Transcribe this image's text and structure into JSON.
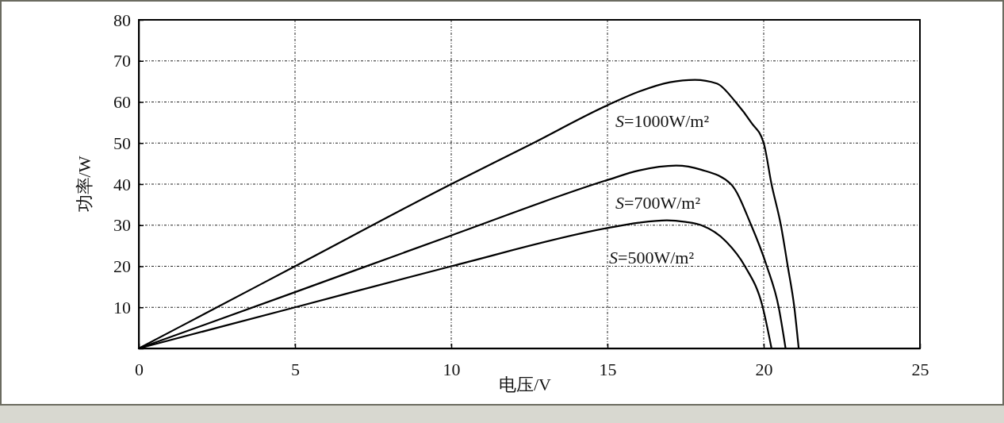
{
  "chart_data": {
    "type": "line",
    "xlabel": "电压/V",
    "ylabel": "功率/W",
    "xlim": [
      0,
      25
    ],
    "xticks": [
      0,
      5,
      10,
      15,
      20,
      25
    ],
    "ylim": [
      0,
      80
    ],
    "yticks": [
      {
        "value": 0,
        "label": null
      },
      10,
      20,
      30,
      40,
      50,
      60,
      70,
      80
    ],
    "grid": true,
    "line_style": "solid",
    "marker": "none",
    "series": [
      {
        "color": "#000000",
        "x": [
          0,
          2.5,
          5,
          10,
          12.5,
          15,
          16,
          17,
          17.8,
          18.5,
          19.1,
          19.6,
          20,
          20.25,
          20.55,
          20.77,
          20.98,
          21.12
        ],
        "values": [
          0,
          10,
          20,
          40,
          49.5,
          59.2,
          62.5,
          64.8,
          65.4,
          64.5,
          60,
          55,
          50,
          40,
          30,
          20,
          10,
          0
        ]
      },
      {
        "color": "#000000",
        "x": [
          0,
          5,
          10,
          15,
          16,
          17.2,
          18,
          18.95,
          19.6,
          20.1,
          20.48,
          20.7
        ],
        "values": [
          0,
          13.7,
          27.5,
          41,
          43.3,
          44.5,
          43.5,
          40,
          30,
          20,
          10,
          0
        ]
      },
      {
        "color": "#000000",
        "x": [
          0,
          5,
          10,
          15,
          16,
          16.9,
          17.5,
          18,
          18.8,
          19.4,
          19.97,
          20.25
        ],
        "values": [
          0,
          10,
          20,
          29.3,
          30.6,
          31.2,
          30.8,
          30,
          26,
          20,
          10,
          0
        ]
      }
    ],
    "annotations": [
      "S=1000W/m²",
      "S=700W/m²",
      "S=500W/m²"
    ]
  }
}
